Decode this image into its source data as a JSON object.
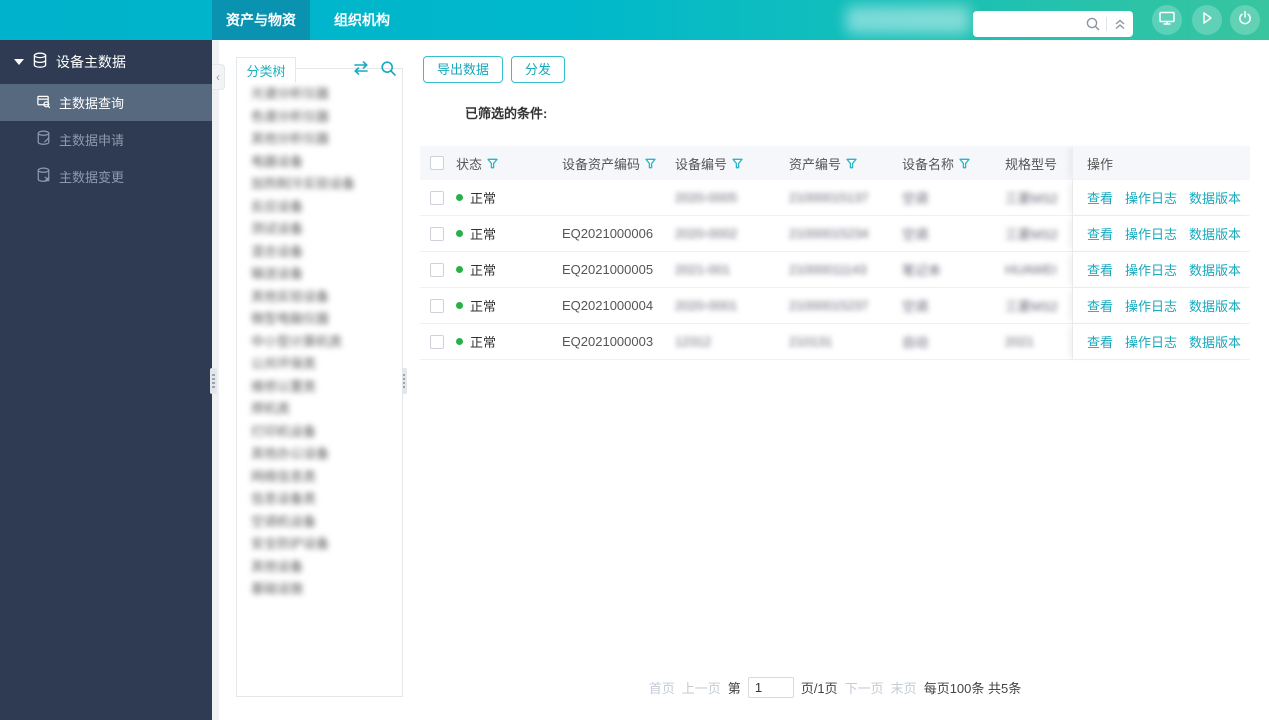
{
  "colors": {
    "accent": "#17a9bd",
    "topbar_left": "#00b2cb",
    "topbar_right": "#39c59f",
    "active_tab": "#0a93b0",
    "sidebar_bg": "#2e3b52",
    "sidebar_active": "#57697f",
    "status_green": "#27b148",
    "header_bg": "#f6f7fa"
  },
  "topbar": {
    "tabs": [
      {
        "label": "资产与物资",
        "active": true
      },
      {
        "label": "组织机构",
        "active": false
      }
    ],
    "search": {
      "value": ""
    },
    "icons": [
      "search-icon",
      "double-chevron-up-icon",
      "monitor-icon",
      "play-icon",
      "power-icon"
    ]
  },
  "sidebar": {
    "group": {
      "label": "设备主数据"
    },
    "items": [
      {
        "label": "主数据查询",
        "active": true
      },
      {
        "label": "主数据申请",
        "active": false
      },
      {
        "label": "主数据变更",
        "active": false
      }
    ]
  },
  "tree": {
    "tab_label": "分类树",
    "blurred_items": [
      "光谱分析仪器",
      "色谱分析仪器",
      "其他分析仪器",
      "电器设备",
      "加热制冷实验设备",
      "反应设备",
      "测试设备",
      "混合设备",
      "输送设备",
      "其他实验设备",
      "微型电脑仪器",
      "中小型计算机类",
      "公共环保类",
      "维修以置类",
      "焊机类",
      "打印机设备",
      "其他办公设备",
      "网络信息类",
      "信息设备类",
      "空调机设备",
      "安全防护设备",
      "其他设备",
      "基础设施"
    ]
  },
  "toolbar": {
    "export_label": "导出数据",
    "distribute_label": "分发"
  },
  "filter_label": "已筛选的条件:",
  "table": {
    "columns": [
      {
        "label": "",
        "type": "checkbox",
        "filter": false
      },
      {
        "label": "状态",
        "filter": true
      },
      {
        "label": "设备资产编码",
        "filter": true
      },
      {
        "label": "设备编号",
        "filter": true
      },
      {
        "label": "资产编号",
        "filter": true
      },
      {
        "label": "设备名称",
        "filter": true
      },
      {
        "label": "规格型号",
        "filter": false
      },
      {
        "label": "操作",
        "filter": false
      }
    ],
    "action_links": [
      "查看",
      "操作日志",
      "数据版本",
      "..."
    ],
    "rows": [
      {
        "status": "正常",
        "asset_code": "",
        "device_no": "2020-0005",
        "asset_no": "21000015137",
        "name": "空调",
        "model": "三菱MS2"
      },
      {
        "status": "正常",
        "asset_code": "EQ2021000006",
        "device_no": "2020-0002",
        "asset_no": "21000015234",
        "name": "空调",
        "model": "三菱MS2"
      },
      {
        "status": "正常",
        "asset_code": "EQ2021000005",
        "device_no": "2021-001",
        "asset_no": "21000011143",
        "name": "笔记本",
        "model": "HUAWEI"
      },
      {
        "status": "正常",
        "asset_code": "EQ2021000004",
        "device_no": "2020-0001",
        "asset_no": "21000015237",
        "name": "空调",
        "model": "三菱MS2"
      },
      {
        "status": "正常",
        "asset_code": "EQ2021000003",
        "device_no": "12312",
        "asset_no": "210131",
        "name": "自动",
        "model": "2021"
      }
    ]
  },
  "pagination": {
    "first": "首页",
    "prev": "上一页",
    "page_prefix": "第",
    "page_value": "1",
    "page_suffix": "页/1页",
    "next": "下一页",
    "last": "末页",
    "size_total": "每页100条 共5条"
  }
}
